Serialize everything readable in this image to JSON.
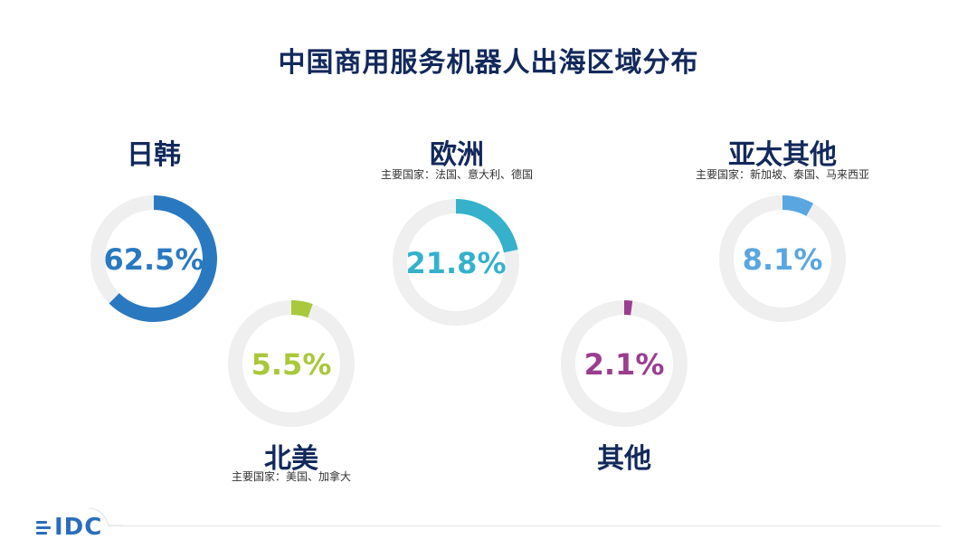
{
  "title": "中国商用服务机器人出海区域分布",
  "logo": {
    "text": "IDC"
  },
  "colors": {
    "title": "#13295c",
    "track": "#efefef",
    "japan_korea": "#2a79c0",
    "europe": "#35b1cc",
    "apac_other": "#5aa6e0",
    "north_america": "#a9c83b",
    "other": "#9a3d8f"
  },
  "chart_data": {
    "type": "pie",
    "title": "中国商用服务机器人出海区域分布",
    "unit": "%",
    "categories": [
      "日韩",
      "欧洲",
      "亚太其他",
      "北美",
      "其他"
    ],
    "values": [
      62.5,
      21.8,
      8.1,
      5.5,
      2.1
    ],
    "value_labels": [
      "62.5%",
      "21.8%",
      "8.1%",
      "5.5%",
      "2.1%"
    ],
    "notes": [
      "",
      "主要国家：法国、意大利、德国",
      "主要国家：新加坡、泰国、马来西亚",
      "主要国家：美国、加拿大",
      ""
    ]
  }
}
